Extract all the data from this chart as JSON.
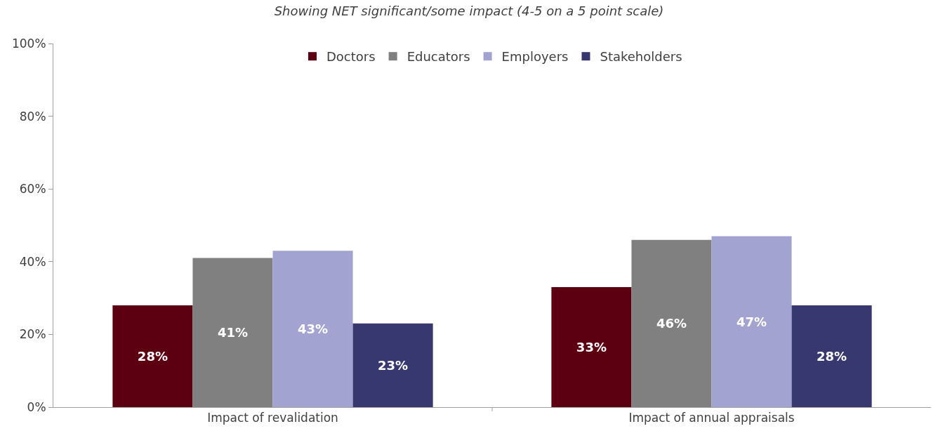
{
  "chart_data": {
    "type": "bar",
    "title": "Showing NET significant/some impact (4-5 on a 5 point scale)",
    "categories": [
      "Impact of revalidation",
      "Impact of annual appraisals"
    ],
    "series": [
      {
        "name": "Doctors",
        "color": "#5c0011",
        "values": [
          28,
          33
        ],
        "value_labels": [
          "28%",
          "33%"
        ]
      },
      {
        "name": "Educators",
        "color": "#808080",
        "values": [
          41,
          46
        ],
        "value_labels": [
          "41%",
          "46%"
        ]
      },
      {
        "name": "Employers",
        "color": "#a3a3d1",
        "values": [
          43,
          47
        ],
        "value_labels": [
          "43%",
          "47%"
        ]
      },
      {
        "name": "Stakeholders",
        "color": "#383870",
        "values": [
          23,
          28
        ],
        "value_labels": [
          "23%",
          "28%"
        ]
      }
    ],
    "ylim": [
      0,
      100
    ],
    "yticks": [
      {
        "value": 0,
        "label": "0%"
      },
      {
        "value": 20,
        "label": "20%"
      },
      {
        "value": 40,
        "label": "40%"
      },
      {
        "value": 60,
        "label": "60%"
      },
      {
        "value": 80,
        "label": "80%"
      },
      {
        "value": 100,
        "label": "100%"
      }
    ],
    "grid": false,
    "legend": "top"
  }
}
